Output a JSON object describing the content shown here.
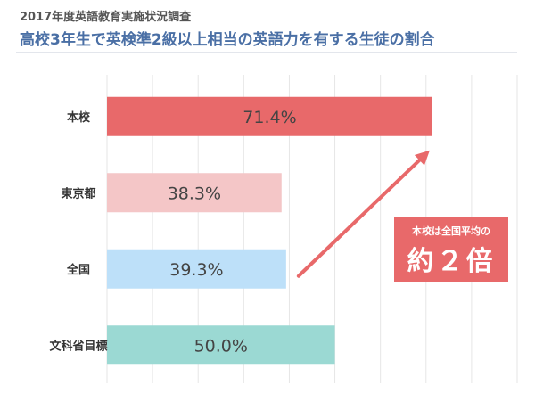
{
  "header": {
    "survey_name": "2017年度英語教育実施状況調査",
    "title": "高校3年生で英検準2級以上相当の英語力を有する生徒の割合"
  },
  "callout": {
    "small_text": "本校は全国平均の",
    "big_text": "約２倍",
    "color": "#e8696a"
  },
  "chart_data": {
    "type": "bar",
    "orientation": "horizontal",
    "title": "高校3年生で英検準2級以上相当の英語力を有する生徒の割合",
    "subtitle": "2017年度英語教育実施状況調査",
    "categories": [
      "本校",
      "東京都",
      "全国",
      "文科省目標"
    ],
    "values": [
      71.4,
      38.3,
      39.3,
      50.0
    ],
    "value_labels": [
      "71.4%",
      "38.3%",
      "39.3%",
      "50.0%"
    ],
    "bar_colors": [
      "#e8696a",
      "#f4c6c7",
      "#bde0f9",
      "#9bd9d3"
    ],
    "xlim": [
      0,
      90
    ],
    "grid": true,
    "unit": "%"
  },
  "colors": {
    "title": "#4a6fa5",
    "grid": "#e6e6e6",
    "arrow": "#e8696a"
  }
}
